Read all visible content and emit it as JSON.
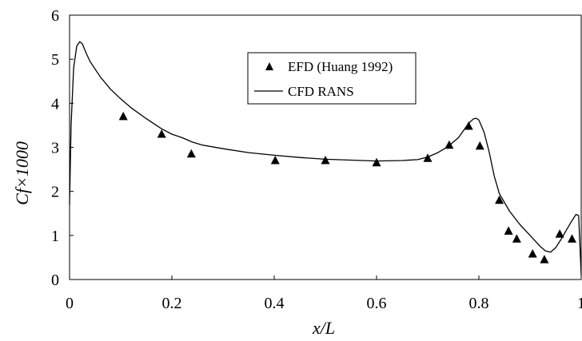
{
  "chart_data": {
    "type": "line",
    "title": "",
    "xlabel": "x/L",
    "ylabel": "Cf×1000",
    "xlim": [
      0,
      1
    ],
    "ylim": [
      0,
      6
    ],
    "x_ticks": [
      "0",
      "0.2",
      "0.4",
      "0.6",
      "0.8",
      "1"
    ],
    "y_ticks": [
      "0",
      "1",
      "2",
      "3",
      "4",
      "5",
      "6"
    ],
    "grid": false,
    "legend_position": "top-right",
    "series": [
      {
        "name": "EFD (Huang 1992)",
        "style": "markers-triangle",
        "color": "#000000",
        "x": [
          0.105,
          0.18,
          0.238,
          0.402,
          0.5,
          0.6,
          0.7,
          0.742,
          0.78,
          0.802,
          0.84,
          0.858,
          0.874,
          0.905,
          0.928,
          0.958,
          0.982
        ],
        "y": [
          3.7,
          3.3,
          2.85,
          2.7,
          2.7,
          2.65,
          2.75,
          3.05,
          3.48,
          3.03,
          1.8,
          1.1,
          0.92,
          0.58,
          0.45,
          1.03,
          0.92
        ]
      },
      {
        "name": "CFD RANS",
        "style": "line",
        "color": "#000000",
        "x": [
          0,
          0.003,
          0.008,
          0.014,
          0.02,
          0.025,
          0.032,
          0.04,
          0.06,
          0.08,
          0.1,
          0.12,
          0.15,
          0.18,
          0.2,
          0.22,
          0.24,
          0.26,
          0.3,
          0.35,
          0.4,
          0.45,
          0.5,
          0.55,
          0.6,
          0.65,
          0.68,
          0.7,
          0.72,
          0.74,
          0.76,
          0.77,
          0.78,
          0.79,
          0.795,
          0.8,
          0.81,
          0.82,
          0.83,
          0.84,
          0.86,
          0.88,
          0.9,
          0.92,
          0.93,
          0.94,
          0.95,
          0.96,
          0.97,
          0.98,
          0.99,
          0.995,
          1.0
        ],
        "y": [
          1.7,
          3.5,
          4.8,
          5.3,
          5.4,
          5.35,
          5.15,
          4.95,
          4.6,
          4.32,
          4.1,
          3.9,
          3.65,
          3.42,
          3.3,
          3.22,
          3.12,
          3.05,
          2.97,
          2.88,
          2.82,
          2.77,
          2.73,
          2.71,
          2.69,
          2.7,
          2.72,
          2.78,
          2.88,
          3.02,
          3.22,
          3.38,
          3.55,
          3.65,
          3.66,
          3.62,
          3.35,
          2.9,
          2.35,
          1.95,
          1.55,
          1.25,
          1.0,
          0.75,
          0.65,
          0.62,
          0.72,
          0.9,
          1.1,
          1.3,
          1.48,
          1.45,
          0.1
        ]
      }
    ]
  }
}
